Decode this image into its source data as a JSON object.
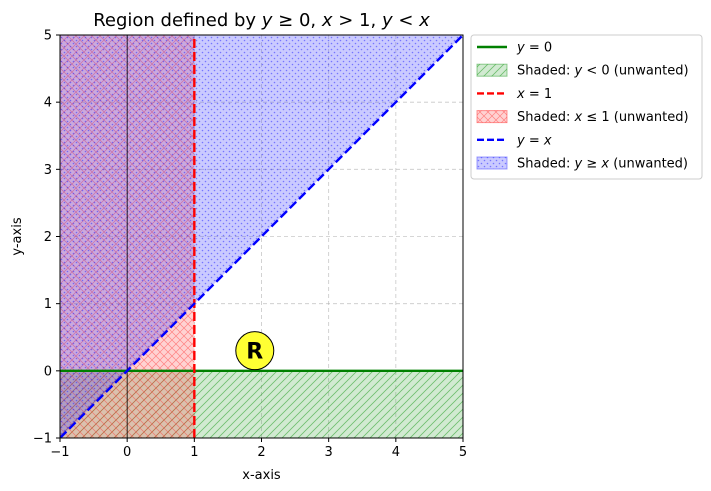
{
  "chart_data": {
    "type": "line",
    "title_parts": [
      {
        "t": "Region defined by ",
        "it": false
      },
      {
        "t": "y",
        "it": true
      },
      {
        "t": " ≥ 0, ",
        "it": false
      },
      {
        "t": "x",
        "it": true
      },
      {
        "t": " > 1, ",
        "it": false
      },
      {
        "t": "y",
        "it": true
      },
      {
        "t": " < ",
        "it": false
      },
      {
        "t": "x",
        "it": true
      }
    ],
    "xlabel": "x-axis",
    "ylabel": "y-axis",
    "xlim": [
      -1,
      5
    ],
    "ylim": [
      -1,
      5
    ],
    "xticks": [
      "−1",
      "0",
      "1",
      "2",
      "3",
      "4",
      "5"
    ],
    "yticks": [
      "−1",
      "0",
      "1",
      "2",
      "3",
      "4",
      "5"
    ],
    "grid": true,
    "legend_position": "outside-top-right",
    "series": [
      {
        "key": "y0",
        "kind": "line",
        "style": "solid",
        "color": "#008000",
        "x": [
          -1,
          5
        ],
        "y": [
          0,
          0
        ],
        "legend_parts": [
          {
            "t": "y",
            "it": true
          },
          {
            "t": " = 0",
            "it": false
          }
        ]
      },
      {
        "key": "shade_y_neg",
        "kind": "region",
        "color": "#2ca02c",
        "opacity": 0.22,
        "hatch": "diagonal",
        "polygon": [
          [
            -1,
            -1
          ],
          [
            5,
            -1
          ],
          [
            5,
            0
          ],
          [
            -1,
            0
          ]
        ],
        "legend_parts": [
          {
            "t": "Shaded: ",
            "it": false
          },
          {
            "t": "y",
            "it": true
          },
          {
            "t": " < 0 (unwanted)",
            "it": false
          }
        ]
      },
      {
        "key": "x1",
        "kind": "line",
        "style": "dashed",
        "color": "#ff0000",
        "x": [
          1,
          1
        ],
        "y": [
          -1,
          5
        ],
        "legend_parts": [
          {
            "t": "x",
            "it": true
          },
          {
            "t": " = 1",
            "it": false
          }
        ]
      },
      {
        "key": "shade_x_le_1",
        "kind": "region",
        "color": "#ff3030",
        "opacity": 0.22,
        "hatch": "crosshatch",
        "polygon": [
          [
            -1,
            -1
          ],
          [
            1,
            -1
          ],
          [
            1,
            5
          ],
          [
            -1,
            5
          ]
        ],
        "legend_parts": [
          {
            "t": "Shaded: ",
            "it": false
          },
          {
            "t": "x",
            "it": true
          },
          {
            "t": " ≤ 1 (unwanted)",
            "it": false
          }
        ]
      },
      {
        "key": "yx",
        "kind": "line",
        "style": "dashed",
        "color": "#0000ff",
        "x": [
          -1,
          5
        ],
        "y": [
          -1,
          5
        ],
        "legend_parts": [
          {
            "t": "y",
            "it": true
          },
          {
            "t": " = ",
            "it": false
          },
          {
            "t": "x",
            "it": true
          }
        ]
      },
      {
        "key": "shade_y_ge_x",
        "kind": "region",
        "color": "#4040ff",
        "opacity": 0.28,
        "hatch": "dots",
        "polygon": [
          [
            -1,
            -1
          ],
          [
            5,
            5
          ],
          [
            -1,
            5
          ]
        ],
        "legend_parts": [
          {
            "t": "Shaded: ",
            "it": false
          },
          {
            "t": "y",
            "it": true
          },
          {
            "t": " ≥ ",
            "it": false
          },
          {
            "t": "x",
            "it": true
          },
          {
            "t": " (unwanted)",
            "it": false
          }
        ]
      }
    ],
    "annotations": [
      {
        "text": "R",
        "x": 1.9,
        "y": 0.3,
        "bg_color": "#ffff33"
      }
    ]
  }
}
